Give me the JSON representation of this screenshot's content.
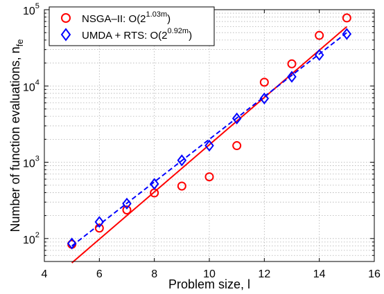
{
  "chart_data": {
    "type": "scatter",
    "xlabel": "Problem size, l",
    "ylabel": "Number of function evaluations, n",
    "ylabel_subscript": "fe",
    "xlim": [
      4,
      16
    ],
    "ylim": [
      50,
      100000
    ],
    "yscale": "log",
    "x_ticks": [
      "4",
      "6",
      "8",
      "10",
      "12",
      "14",
      "16"
    ],
    "y_ticks": [
      {
        "base": "10",
        "exp": "2"
      },
      {
        "base": "10",
        "exp": "3"
      },
      {
        "base": "10",
        "exp": "4"
      },
      {
        "base": "10",
        "exp": "5"
      }
    ],
    "grid": true,
    "legend_position": "top-left",
    "series": [
      {
        "name": "NSGA–II: O(2",
        "name_exponent": "1.03m",
        "name_suffix": ")",
        "marker": "circle",
        "color": "#ff0000",
        "x": [
          5,
          6,
          7,
          8,
          9,
          10,
          11,
          12,
          13,
          14,
          15
        ],
        "y": [
          84,
          137,
          237,
          396,
          487,
          644,
          1650,
          11200,
          19500,
          46000,
          78000
        ],
        "fit": {
          "line_style": "solid",
          "x": [
            5,
            15
          ],
          "y": [
            48,
            60000
          ]
        }
      },
      {
        "name": "UMDA + RTS: O(2",
        "name_exponent": "0.92m",
        "name_suffix": ")",
        "marker": "diamond",
        "color": "#0000ff",
        "x": [
          5,
          6,
          7,
          8,
          9,
          10,
          11,
          12,
          13,
          14,
          15
        ],
        "y": [
          86,
          165,
          287,
          520,
          1060,
          1650,
          3750,
          6850,
          13200,
          25500,
          48000
        ],
        "fit": {
          "line_style": "dashed",
          "x": [
            5,
            15
          ],
          "y": [
            80,
            50000
          ]
        }
      }
    ]
  }
}
